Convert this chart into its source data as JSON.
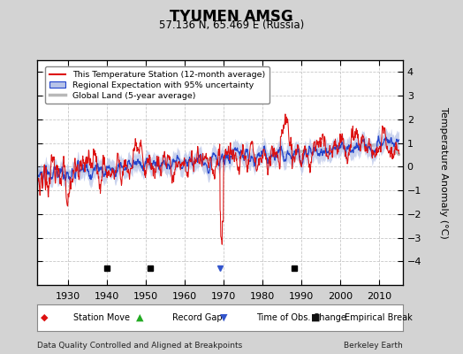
{
  "title": "TYUMEN AMSG",
  "subtitle": "57.136 N, 65.469 E (Russia)",
  "ylabel": "Temperature Anomaly (°C)",
  "footer_left": "Data Quality Controlled and Aligned at Breakpoints",
  "footer_right": "Berkeley Earth",
  "xlim": [
    1922,
    2016
  ],
  "ylim": [
    -5,
    4.5
  ],
  "yticks": [
    -4,
    -3,
    -2,
    -1,
    0,
    1,
    2,
    3,
    4
  ],
  "xticks": [
    1930,
    1940,
    1950,
    1960,
    1970,
    1980,
    1990,
    2000,
    2010
  ],
  "background_color": "#d3d3d3",
  "plot_background": "#ffffff",
  "grid_color": "#c8c8c8",
  "empirical_breaks": [
    1940,
    1951,
    1988
  ],
  "obs_change": [
    1969
  ],
  "station_move": [],
  "record_gap": []
}
